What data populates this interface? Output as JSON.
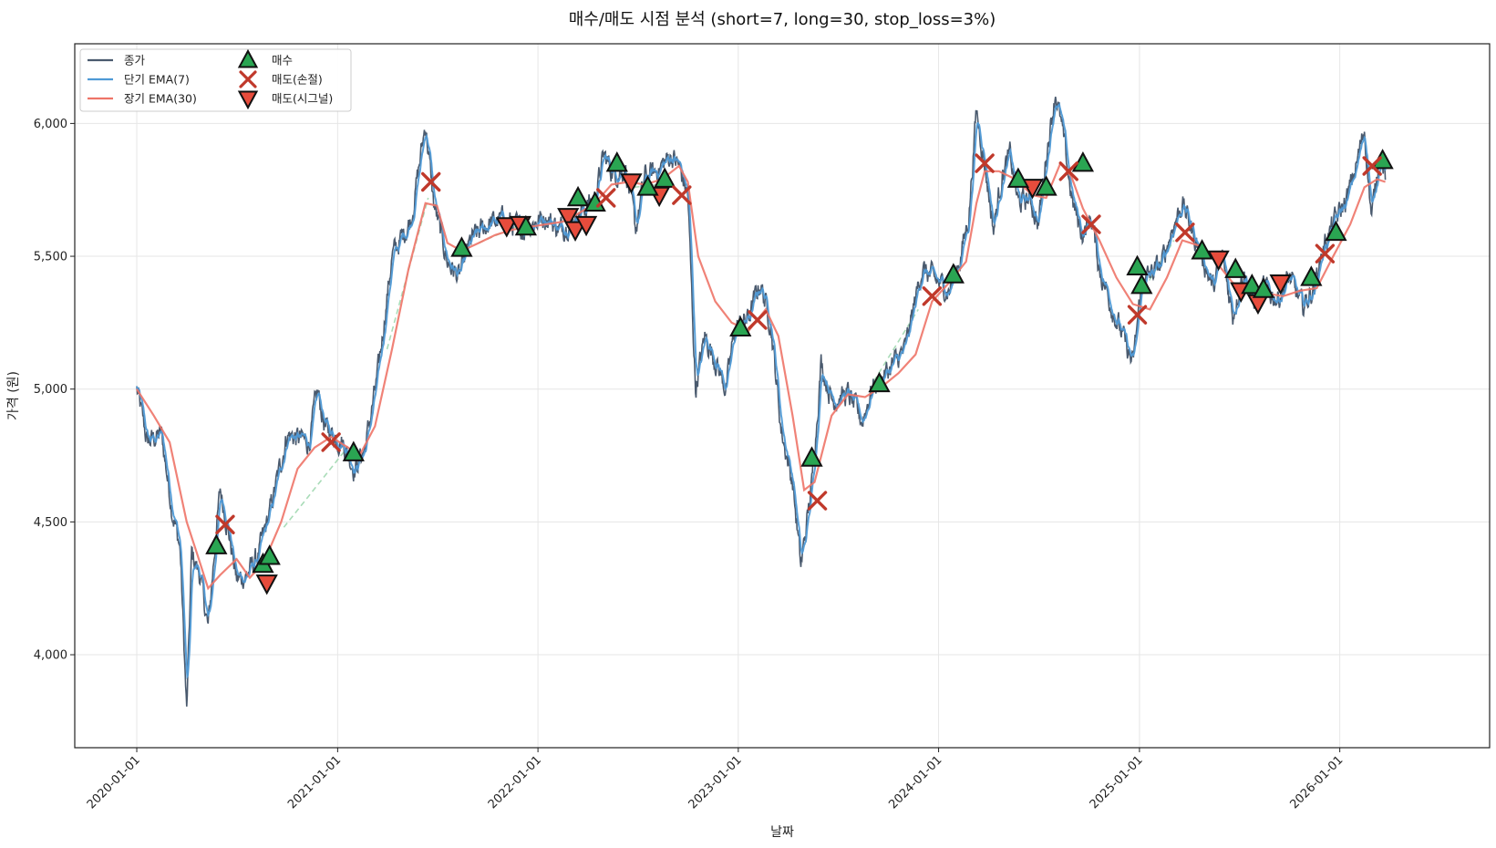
{
  "chart_data": {
    "type": "line",
    "title": "매수/매도 시점 분석 (short=7, long=30, stop_loss=3%)",
    "xlabel": "날짜",
    "ylabel": "가격 (원)",
    "x_range": [
      "2019-09-10",
      "2026-10-01"
    ],
    "ylim": [
      3650,
      6300
    ],
    "grid": true,
    "legend_placement": "top-left",
    "x_ticks": [
      "2020-01-01",
      "2021-01-01",
      "2022-01-01",
      "2023-01-01",
      "2024-01-01",
      "2025-01-01",
      "2026-01-01"
    ],
    "y_ticks": [
      4000,
      4500,
      5000,
      5500,
      6000
    ],
    "y_tick_labels": [
      "4,000",
      "4,500",
      "5,000",
      "5,500",
      "6,000"
    ],
    "colors": {
      "close": "#4a5a6e",
      "ema_short": "#4f9ad6",
      "ema_long": "#ee7468",
      "buy": "#2aa552",
      "stop": "#c0392b",
      "signal": "#e74c3c",
      "dashed": "#a9dcb8"
    },
    "legend": [
      {
        "key": "close",
        "label": "종가",
        "kind": "line"
      },
      {
        "key": "ema_short",
        "label": "단기 EMA(7)",
        "kind": "line"
      },
      {
        "key": "ema_long",
        "label": "장기 EMA(30)",
        "kind": "line"
      },
      {
        "key": "buy",
        "label": "매수",
        "kind": "triangle-up"
      },
      {
        "key": "stop",
        "label": "매도(손절)",
        "kind": "x"
      },
      {
        "key": "signal",
        "label": "매도(시그널)",
        "kind": "triangle-down"
      }
    ],
    "series_anchors": {
      "close": [
        [
          "2020-01-01",
          5000
        ],
        [
          "2020-01-20",
          4800
        ],
        [
          "2020-02-15",
          4830
        ],
        [
          "2020-03-05",
          4550
        ],
        [
          "2020-03-20",
          4400
        ],
        [
          "2020-04-01",
          3780
        ],
        [
          "2020-04-10",
          4380
        ],
        [
          "2020-04-25",
          4300
        ],
        [
          "2020-05-10",
          4100
        ],
        [
          "2020-05-20",
          4350
        ],
        [
          "2020-06-01",
          4620
        ],
        [
          "2020-06-15",
          4480
        ],
        [
          "2020-07-01",
          4280
        ],
        [
          "2020-07-20",
          4300
        ],
        [
          "2020-08-10",
          4380
        ],
        [
          "2020-09-01",
          4550
        ],
        [
          "2020-10-01",
          4830
        ],
        [
          "2020-11-10",
          4800
        ],
        [
          "2020-11-25",
          4990
        ],
        [
          "2020-12-10",
          4850
        ],
        [
          "2021-01-10",
          4800
        ],
        [
          "2021-02-01",
          4700
        ],
        [
          "2021-02-20",
          4780
        ],
        [
          "2021-03-15",
          5050
        ],
        [
          "2021-04-10",
          5500
        ],
        [
          "2021-05-15",
          5640
        ],
        [
          "2021-06-10",
          6000
        ],
        [
          "2021-06-25",
          5700
        ],
        [
          "2021-07-20",
          5480
        ],
        [
          "2021-08-10",
          5420
        ],
        [
          "2021-09-01",
          5560
        ],
        [
          "2021-10-01",
          5620
        ],
        [
          "2021-11-01",
          5640
        ],
        [
          "2021-12-01",
          5600
        ],
        [
          "2022-01-15",
          5650
        ],
        [
          "2022-02-10",
          5600
        ],
        [
          "2022-03-15",
          5660
        ],
        [
          "2022-04-15",
          5720
        ],
        [
          "2022-05-01",
          5880
        ],
        [
          "2022-05-20",
          5810
        ],
        [
          "2022-06-10",
          5830
        ],
        [
          "2022-06-28",
          5600
        ],
        [
          "2022-07-15",
          5800
        ],
        [
          "2022-08-05",
          5820
        ],
        [
          "2022-09-01",
          5880
        ],
        [
          "2022-09-15",
          5840
        ],
        [
          "2022-10-01",
          5730
        ],
        [
          "2022-10-15",
          5000
        ],
        [
          "2022-11-01",
          5200
        ],
        [
          "2022-11-20",
          5110
        ],
        [
          "2022-12-10",
          5000
        ],
        [
          "2022-12-25",
          5220
        ],
        [
          "2023-01-20",
          5270
        ],
        [
          "2023-02-10",
          5400
        ],
        [
          "2023-03-01",
          5250
        ],
        [
          "2023-03-20",
          4850
        ],
        [
          "2023-04-10",
          4650
        ],
        [
          "2023-04-25",
          4330
        ],
        [
          "2023-05-15",
          4640
        ],
        [
          "2023-06-01",
          5100
        ],
        [
          "2023-06-20",
          4960
        ],
        [
          "2023-07-20",
          4980
        ],
        [
          "2023-08-15",
          4880
        ],
        [
          "2023-09-01",
          5000
        ],
        [
          "2023-10-01",
          5070
        ],
        [
          "2023-11-01",
          5150
        ],
        [
          "2023-12-01",
          5450
        ],
        [
          "2023-12-20",
          5420
        ],
        [
          "2024-01-20",
          5370
        ],
        [
          "2024-02-10",
          5500
        ],
        [
          "2024-02-25",
          5650
        ],
        [
          "2024-03-10",
          6050
        ],
        [
          "2024-03-25",
          5850
        ],
        [
          "2024-04-10",
          5600
        ],
        [
          "2024-04-25",
          5800
        ],
        [
          "2024-05-10",
          5880
        ],
        [
          "2024-05-25",
          5700
        ],
        [
          "2024-06-15",
          5720
        ],
        [
          "2024-07-01",
          5620
        ],
        [
          "2024-07-15",
          5880
        ],
        [
          "2024-08-01",
          6120
        ],
        [
          "2024-08-15",
          5950
        ],
        [
          "2024-09-01",
          5700
        ],
        [
          "2024-09-20",
          5580
        ],
        [
          "2024-10-05",
          5650
        ],
        [
          "2024-10-20",
          5450
        ],
        [
          "2024-11-10",
          5320
        ],
        [
          "2024-12-01",
          5200
        ],
        [
          "2024-12-20",
          5090
        ],
        [
          "2025-01-05",
          5400
        ],
        [
          "2025-02-10",
          5470
        ],
        [
          "2025-03-01",
          5600
        ],
        [
          "2025-03-20",
          5700
        ],
        [
          "2025-04-10",
          5580
        ],
        [
          "2025-04-25",
          5500
        ],
        [
          "2025-05-15",
          5380
        ],
        [
          "2025-06-01",
          5500
        ],
        [
          "2025-06-20",
          5280
        ],
        [
          "2025-07-10",
          5450
        ],
        [
          "2025-07-25",
          5330
        ],
        [
          "2025-08-15",
          5380
        ],
        [
          "2025-09-10",
          5340
        ],
        [
          "2025-10-01",
          5420
        ],
        [
          "2025-10-25",
          5310
        ],
        [
          "2025-11-15",
          5380
        ],
        [
          "2025-12-01",
          5530
        ],
        [
          "2025-12-20",
          5620
        ],
        [
          "2026-01-15",
          5720
        ],
        [
          "2026-02-01",
          5850
        ],
        [
          "2026-02-15",
          5980
        ],
        [
          "2026-02-28",
          5640
        ],
        [
          "2026-03-15",
          5900
        ],
        [
          "2026-03-25",
          5800
        ]
      ],
      "ema_long": [
        [
          "2020-01-01",
          5000
        ],
        [
          "2020-02-01",
          4900
        ],
        [
          "2020-03-01",
          4800
        ],
        [
          "2020-04-01",
          4500
        ],
        [
          "2020-04-20",
          4380
        ],
        [
          "2020-05-10",
          4250
        ],
        [
          "2020-06-01",
          4300
        ],
        [
          "2020-07-01",
          4360
        ],
        [
          "2020-07-25",
          4290
        ],
        [
          "2020-08-20",
          4350
        ],
        [
          "2020-09-20",
          4500
        ],
        [
          "2020-10-20",
          4700
        ],
        [
          "2020-11-20",
          4780
        ],
        [
          "2020-12-20",
          4820
        ],
        [
          "2021-01-20",
          4780
        ],
        [
          "2021-02-10",
          4750
        ],
        [
          "2021-03-10",
          4860
        ],
        [
          "2021-04-10",
          5150
        ],
        [
          "2021-05-10",
          5450
        ],
        [
          "2021-06-10",
          5700
        ],
        [
          "2021-07-01",
          5690
        ],
        [
          "2021-07-20",
          5550
        ],
        [
          "2021-08-15",
          5520
        ],
        [
          "2021-09-15",
          5550
        ],
        [
          "2021-10-15",
          5580
        ],
        [
          "2021-11-15",
          5600
        ],
        [
          "2021-12-15",
          5610
        ],
        [
          "2022-01-15",
          5620
        ],
        [
          "2022-02-15",
          5630
        ],
        [
          "2022-03-15",
          5660
        ],
        [
          "2022-04-15",
          5700
        ],
        [
          "2022-05-15",
          5770
        ],
        [
          "2022-06-15",
          5780
        ],
        [
          "2022-07-15",
          5770
        ],
        [
          "2022-08-15",
          5790
        ],
        [
          "2022-09-15",
          5840
        ],
        [
          "2022-10-01",
          5780
        ],
        [
          "2022-10-20",
          5500
        ],
        [
          "2022-11-20",
          5330
        ],
        [
          "2022-12-20",
          5250
        ],
        [
          "2023-01-20",
          5220
        ],
        [
          "2023-02-20",
          5300
        ],
        [
          "2023-03-15",
          5200
        ],
        [
          "2023-04-10",
          4900
        ],
        [
          "2023-05-01",
          4620
        ],
        [
          "2023-05-20",
          4650
        ],
        [
          "2023-06-20",
          4900
        ],
        [
          "2023-07-20",
          4980
        ],
        [
          "2023-08-20",
          4970
        ],
        [
          "2023-09-20",
          5010
        ],
        [
          "2023-10-20",
          5060
        ],
        [
          "2023-11-20",
          5130
        ],
        [
          "2023-12-20",
          5330
        ],
        [
          "2024-01-20",
          5400
        ],
        [
          "2024-02-20",
          5480
        ],
        [
          "2024-03-10",
          5700
        ],
        [
          "2024-03-25",
          5820
        ],
        [
          "2024-04-20",
          5820
        ],
        [
          "2024-05-20",
          5790
        ],
        [
          "2024-06-20",
          5730
        ],
        [
          "2024-07-15",
          5720
        ],
        [
          "2024-08-10",
          5850
        ],
        [
          "2024-08-30",
          5800
        ],
        [
          "2024-09-20",
          5680
        ],
        [
          "2024-10-20",
          5560
        ],
        [
          "2024-11-20",
          5420
        ],
        [
          "2024-12-20",
          5320
        ],
        [
          "2025-01-20",
          5300
        ],
        [
          "2025-02-20",
          5420
        ],
        [
          "2025-03-20",
          5560
        ],
        [
          "2025-04-20",
          5540
        ],
        [
          "2025-05-20",
          5480
        ],
        [
          "2025-06-20",
          5400
        ],
        [
          "2025-07-20",
          5380
        ],
        [
          "2025-08-20",
          5360
        ],
        [
          "2025-09-20",
          5350
        ],
        [
          "2025-10-20",
          5370
        ],
        [
          "2025-11-20",
          5380
        ],
        [
          "2025-12-20",
          5500
        ],
        [
          "2026-01-20",
          5620
        ],
        [
          "2026-02-15",
          5760
        ],
        [
          "2026-03-10",
          5790
        ],
        [
          "2026-03-25",
          5780
        ]
      ],
      "dashed_segments": [
        [
          [
            "2021-04-01",
            5150
          ],
          [
            "2021-06-15",
            5720
          ]
        ],
        [
          [
            "2021-09-15",
            5550
          ],
          [
            "2021-12-01",
            5620
          ]
        ],
        [
          [
            "2022-06-25",
            5760
          ],
          [
            "2022-08-10",
            5770
          ]
        ],
        [
          [
            "2023-09-05",
            5030
          ],
          [
            "2023-11-25",
            5300
          ]
        ],
        [
          [
            "2025-01-10",
            5380
          ],
          [
            "2025-03-05",
            5560
          ]
        ],
        [
          [
            "2020-09-25",
            4480
          ],
          [
            "2021-01-15",
            4770
          ]
        ]
      ]
    },
    "buy_points": [
      [
        "2020-05-25",
        4410
      ],
      [
        "2020-08-18",
        4340
      ],
      [
        "2020-08-30",
        4370
      ],
      [
        "2021-01-30",
        4760
      ],
      [
        "2021-08-15",
        5530
      ],
      [
        "2021-12-10",
        5610
      ],
      [
        "2022-03-15",
        5720
      ],
      [
        "2022-04-15",
        5700
      ],
      [
        "2022-05-25",
        5850
      ],
      [
        "2022-07-20",
        5760
      ],
      [
        "2022-08-20",
        5790
      ],
      [
        "2023-01-05",
        5230
      ],
      [
        "2023-05-15",
        4740
      ],
      [
        "2023-09-15",
        5020
      ],
      [
        "2024-01-28",
        5430
      ],
      [
        "2024-05-25",
        5790
      ],
      [
        "2024-07-15",
        5760
      ],
      [
        "2024-09-20",
        5850
      ],
      [
        "2024-12-28",
        5460
      ],
      [
        "2025-01-05",
        5390
      ],
      [
        "2025-04-25",
        5520
      ],
      [
        "2025-06-25",
        5450
      ],
      [
        "2025-07-25",
        5390
      ],
      [
        "2025-08-15",
        5375
      ],
      [
        "2025-11-10",
        5420
      ],
      [
        "2025-12-25",
        5590
      ],
      [
        "2026-03-20",
        5860
      ]
    ],
    "stop_points": [
      [
        "2020-06-10",
        4490
      ],
      [
        "2020-12-20",
        4800
      ],
      [
        "2021-06-20",
        5780
      ],
      [
        "2022-05-05",
        5720
      ],
      [
        "2022-09-20",
        5730
      ],
      [
        "2023-02-05",
        5260
      ],
      [
        "2023-05-25",
        4580
      ],
      [
        "2023-12-20",
        5350
      ],
      [
        "2024-03-25",
        5850
      ],
      [
        "2024-08-25",
        5820
      ],
      [
        "2024-10-05",
        5620
      ],
      [
        "2024-12-28",
        5280
      ],
      [
        "2025-03-25",
        5590
      ],
      [
        "2025-12-05",
        5510
      ],
      [
        "2026-03-01",
        5840
      ]
    ],
    "signal_points": [
      [
        "2020-08-25",
        4270
      ],
      [
        "2021-11-05",
        5615
      ],
      [
        "2021-11-30",
        5620
      ],
      [
        "2022-02-25",
        5650
      ],
      [
        "2022-03-10",
        5600
      ],
      [
        "2022-03-30",
        5620
      ],
      [
        "2022-06-20",
        5780
      ],
      [
        "2022-08-10",
        5730
      ],
      [
        "2024-06-20",
        5760
      ],
      [
        "2025-05-25",
        5490
      ],
      [
        "2025-07-05",
        5370
      ],
      [
        "2025-08-05",
        5325
      ],
      [
        "2025-09-15",
        5400
      ]
    ]
  }
}
